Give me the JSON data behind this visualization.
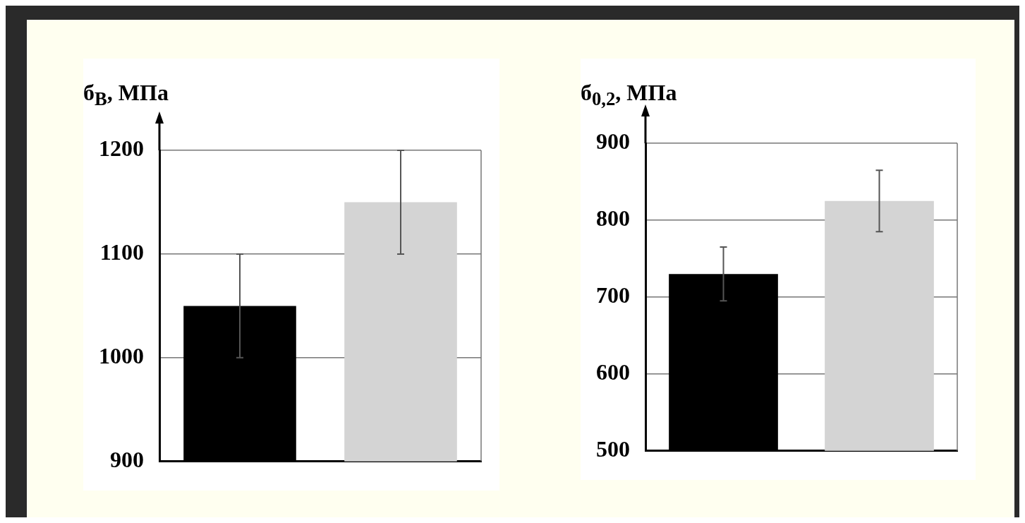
{
  "chart_data": [
    {
      "type": "bar",
      "ylabel": "б$_{В}$, МПа",
      "categories": [
        null,
        null
      ],
      "values": [
        1050,
        1150
      ],
      "colors": [
        "#000000",
        "#d4d4d4"
      ],
      "errors": [
        50,
        50
      ],
      "ylim": [
        900,
        1200
      ],
      "yticks": [
        900,
        1000,
        1100,
        1200
      ],
      "grid": "y"
    },
    {
      "type": "bar",
      "ylabel": "б$_{0,2}$, МПа",
      "categories": [
        null,
        null
      ],
      "values": [
        730,
        825
      ],
      "colors": [
        "#000000",
        "#d4d4d4"
      ],
      "errors": [
        35,
        40
      ],
      "ylim": [
        500,
        900
      ],
      "yticks": [
        500,
        600,
        700,
        800,
        900
      ],
      "grid": "y"
    }
  ]
}
